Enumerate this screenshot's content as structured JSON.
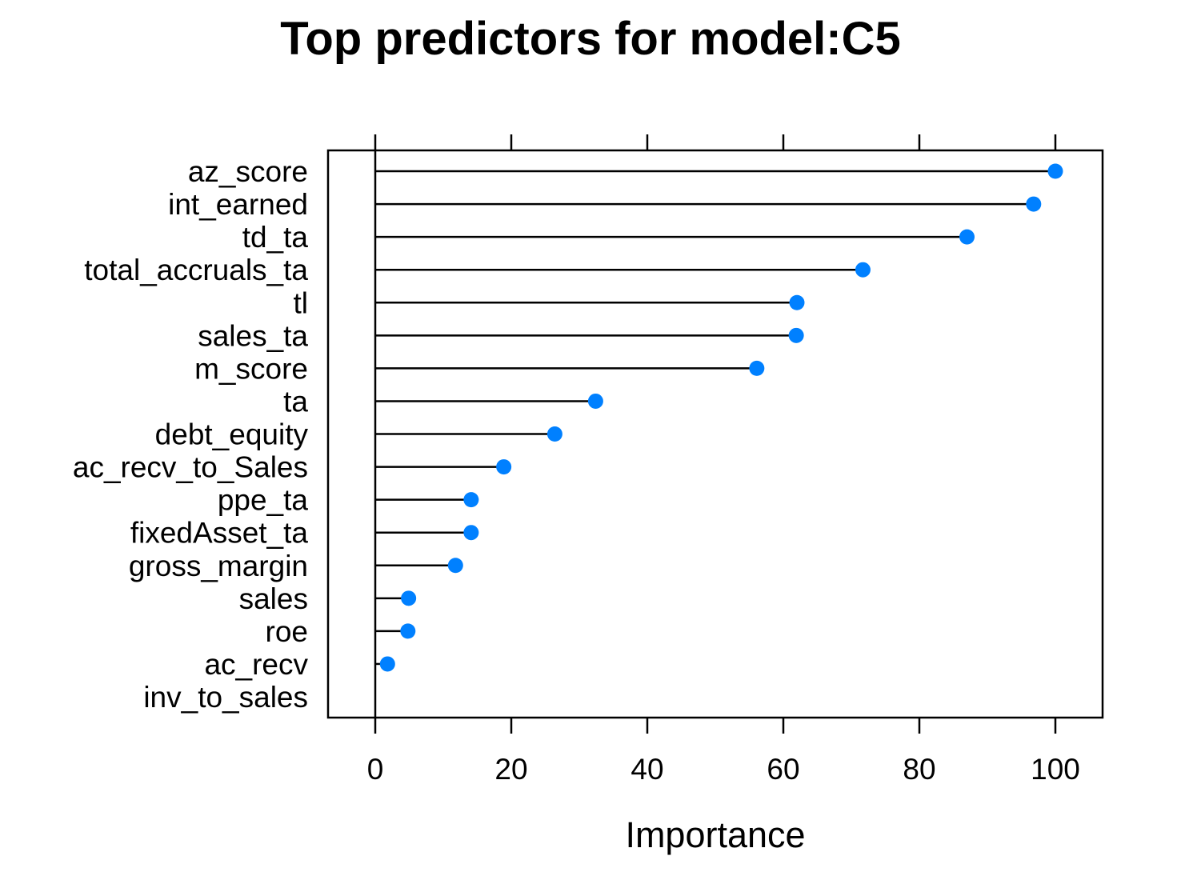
{
  "chart_data": {
    "type": "dotplot",
    "title": "Top predictors for model:C5",
    "xlabel": "Importance",
    "ylabel": "",
    "xlim": [
      -7,
      107
    ],
    "x_ticks": [
      0,
      20,
      40,
      60,
      80,
      100
    ],
    "x_tick_labels": [
      "0",
      "20",
      "40",
      "60",
      "80",
      "100"
    ],
    "categories": [
      "az_score",
      "int_earned",
      "td_ta",
      "total_accruals_ta",
      "tl",
      "sales_ta",
      "m_score",
      "ta",
      "debt_equity",
      "ac_recv_to_Sales",
      "ppe_ta",
      "fixedAsset_ta",
      "gross_margin",
      "sales",
      "roe",
      "ac_recv",
      "inv_to_sales"
    ],
    "values": [
      100,
      96.8,
      87.0,
      71.7,
      62.0,
      61.9,
      56.1,
      32.4,
      26.4,
      18.9,
      14.1,
      14.1,
      11.8,
      4.9,
      4.8,
      1.8,
      0
    ],
    "point_color": "#0080FF",
    "line_color": "#000000",
    "grid": false,
    "legend": "none"
  }
}
